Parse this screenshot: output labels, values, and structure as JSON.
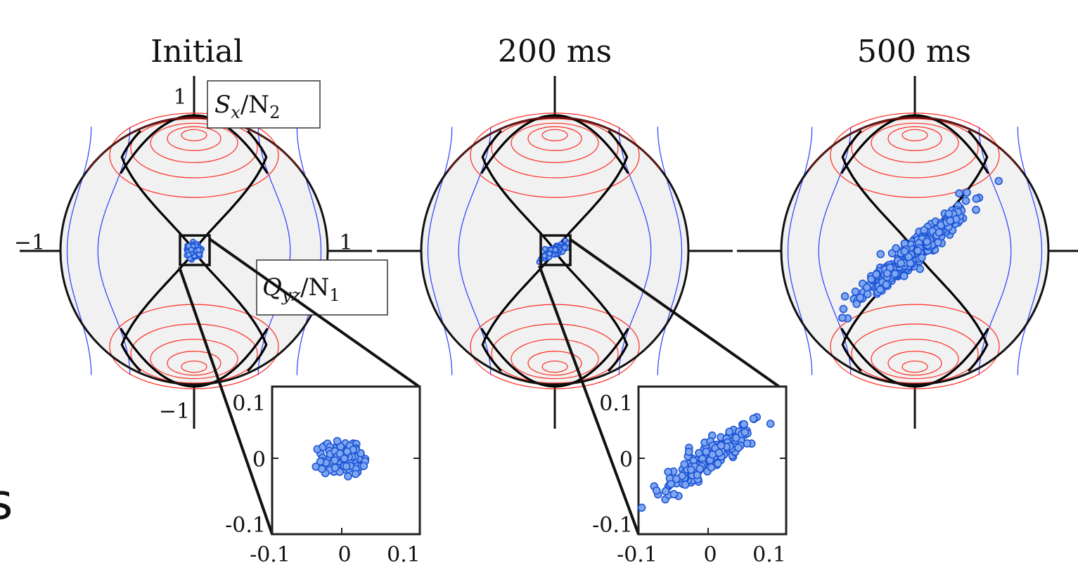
{
  "panels": [
    {
      "title": "Initial",
      "state": "initial"
    },
    {
      "title": "200 ms",
      "state": "200ms"
    },
    {
      "title": "500 ms",
      "state": "500ms"
    }
  ],
  "axis_labels": {
    "top": "1",
    "bottom": "−1",
    "left": "−1",
    "right": "1",
    "vertical_var": "S",
    "vertical_var_sub": "x",
    "vertical_norm": "/N",
    "vertical_norm_sub": "2",
    "horizontal_var": "Q",
    "horizontal_var_sub": "yz",
    "horizontal_norm": "/N",
    "horizontal_norm_sub": "1"
  },
  "inset_ticks": {
    "y": [
      "0.1",
      "0",
      "-0.1"
    ],
    "x": [
      "-0.1",
      "0",
      "0.1"
    ]
  },
  "side_char": "s",
  "colors": {
    "sphere_fill": "#f1f1f1",
    "separatrix": "#000000",
    "red_contour": "#ff2a1f",
    "blue_contour": "#2a3cff",
    "point_fill": "#7fa6f0",
    "point_edge": "#1d55d6"
  }
}
